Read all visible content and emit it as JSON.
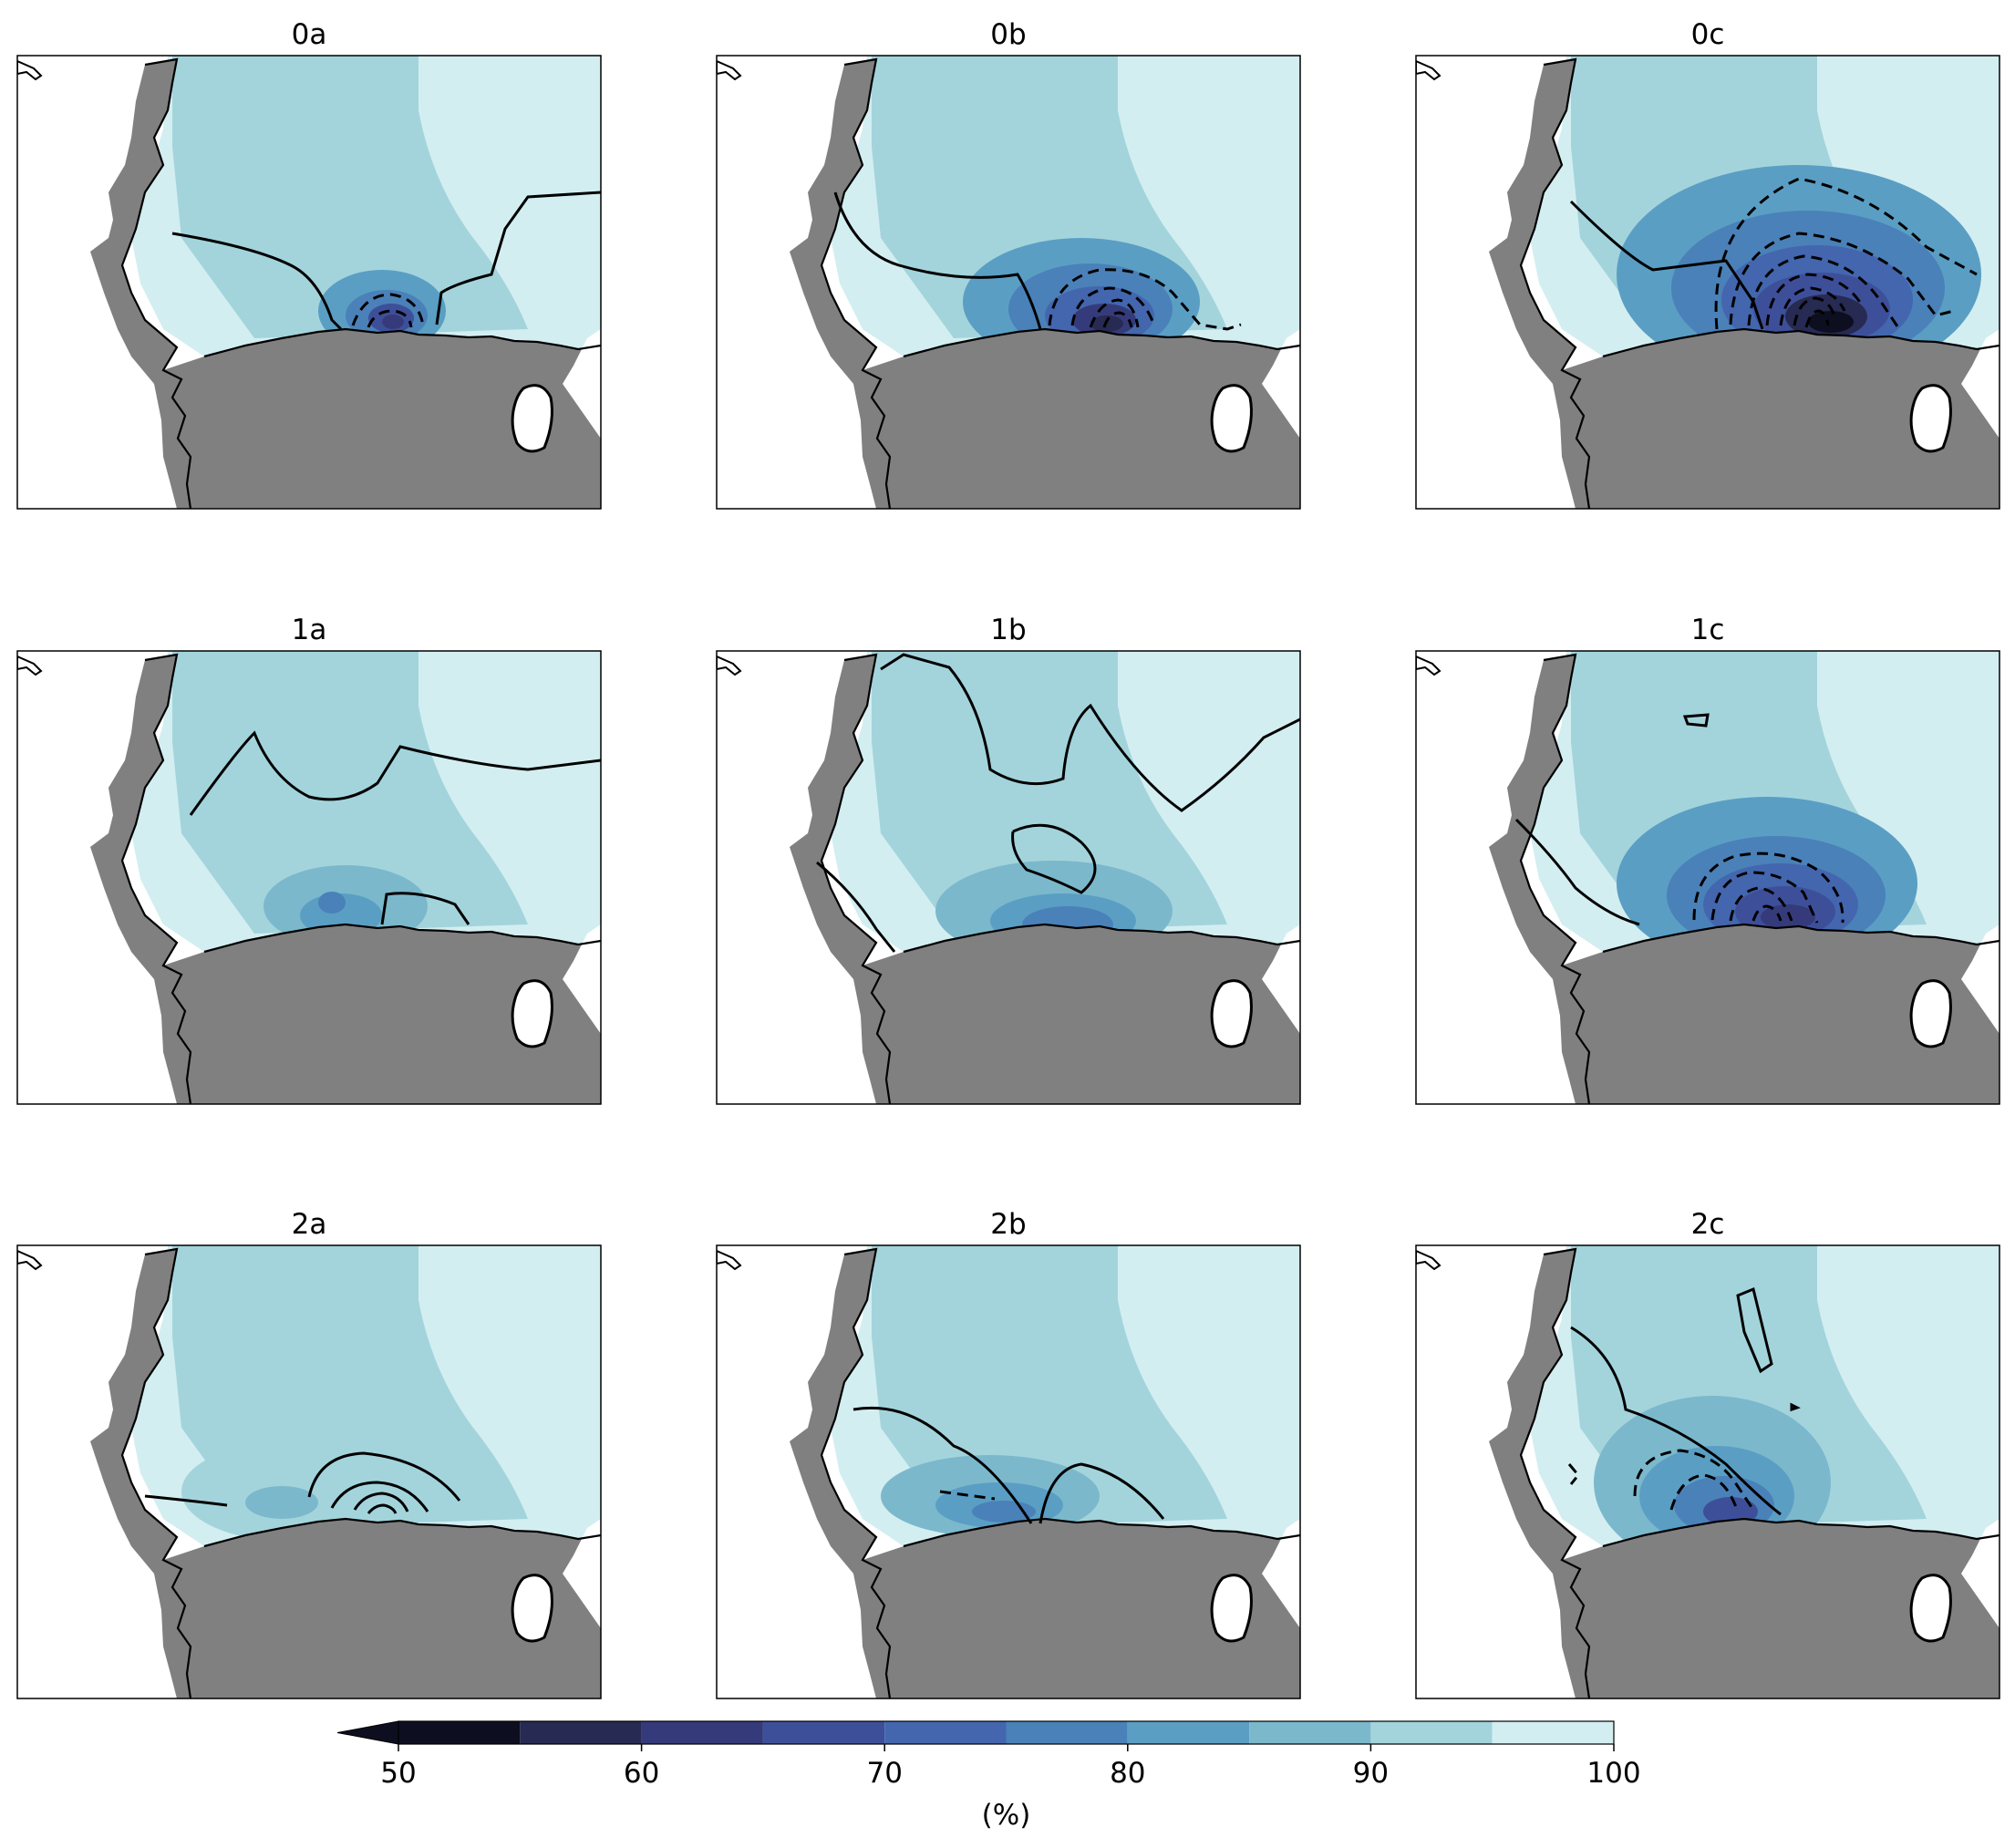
{
  "figure": {
    "panels": [
      {
        "title": "0a",
        "contours": {
          "dashed": 2,
          "solid": 2
        }
      },
      {
        "title": "0b",
        "contours": {
          "dashed": 4,
          "solid": 1
        }
      },
      {
        "title": "0c",
        "contours": {
          "dashed": 7,
          "solid": 1
        }
      },
      {
        "title": "1a",
        "contours": {
          "dashed": 0,
          "solid": 2
        }
      },
      {
        "title": "1b",
        "contours": {
          "dashed": 0,
          "solid": 3
        }
      },
      {
        "title": "1c",
        "contours": {
          "dashed": 4,
          "solid": 2
        }
      },
      {
        "title": "2a",
        "contours": {
          "dashed": 0,
          "solid": 4
        }
      },
      {
        "title": "2b",
        "contours": {
          "dashed": 1,
          "solid": 2
        }
      },
      {
        "title": "2c",
        "contours": {
          "dashed": 2,
          "solid": 3
        }
      }
    ],
    "colorbar": {
      "label": "(%)",
      "ticks": [
        "50",
        "60",
        "70",
        "80",
        "90",
        "100"
      ],
      "levels": [
        50,
        55,
        60,
        65,
        70,
        75,
        80,
        85,
        90,
        95,
        100
      ],
      "colors": [
        "#0d0f20",
        "#272a52",
        "#353b7a",
        "#3e4f9a",
        "#4366ae",
        "#4a81b8",
        "#5a9ec4",
        "#7bb8cc",
        "#a3d4dc",
        "#d3eef1"
      ],
      "extend": "min"
    },
    "colors": {
      "land": "#808080",
      "ocean_outside": "#ffffff",
      "field_95_100": "#d3eef1",
      "field_90_95": "#a3d4dc"
    }
  }
}
